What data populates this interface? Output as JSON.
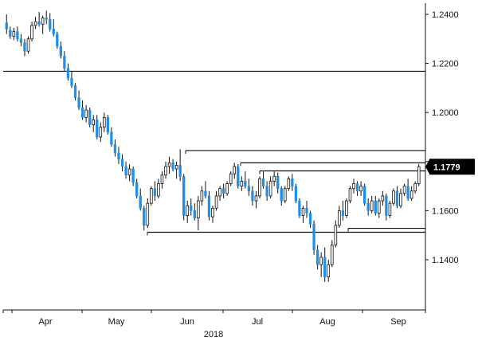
{
  "chart_data": {
    "type": "candlestick",
    "title": "",
    "xlabel": "",
    "ylabel": "",
    "ylim": [
      1.122,
      1.244
    ],
    "y_ticks": [
      "1.2400",
      "1.2200",
      "1.2000",
      "1.1800",
      "1.1600",
      "1.1400"
    ],
    "x_tick_labels": [
      "Apr",
      "May",
      "Jun",
      "Jul",
      "Aug",
      "Sep"
    ],
    "year_label": "2018",
    "last_price": {
      "value": 1.1779,
      "label": "1.1779"
    },
    "colors": {
      "up": "#ffffff",
      "down": "#1e90e8",
      "wick": "#111111",
      "levels": "#111111",
      "badge": "#000000"
    },
    "levels": [
      {
        "value": 1.2168,
        "from": "start",
        "to": "end"
      },
      {
        "value": 1.1845,
        "from": "Jun",
        "to": "end"
      },
      {
        "value": 1.1795,
        "from": "Jul-first",
        "to": "end"
      },
      {
        "value": 1.1762,
        "from": "Jul-second",
        "to": "end"
      },
      {
        "value": 1.1528,
        "from": "Aug-late",
        "to": "end"
      },
      {
        "value": 1.1512,
        "from": "May-late",
        "to": "end"
      }
    ],
    "candles": [
      [
        1.2365,
        1.24,
        1.232,
        1.234
      ],
      [
        1.2335,
        1.235,
        1.23,
        1.231
      ],
      [
        1.231,
        1.2345,
        1.2295,
        1.233
      ],
      [
        1.233,
        1.235,
        1.229,
        1.23
      ],
      [
        1.23,
        1.232,
        1.227,
        1.2285
      ],
      [
        1.2285,
        1.23,
        1.223,
        1.225
      ],
      [
        1.225,
        1.231,
        1.224,
        1.23
      ],
      [
        1.23,
        1.237,
        1.229,
        1.2355
      ],
      [
        1.2355,
        1.239,
        1.234,
        1.237
      ],
      [
        1.237,
        1.241,
        1.235,
        1.236
      ],
      [
        1.236,
        1.2395,
        1.232,
        1.2385
      ],
      [
        1.2385,
        1.2415,
        1.236,
        1.238
      ],
      [
        1.238,
        1.2405,
        1.233,
        1.234
      ],
      [
        1.234,
        1.238,
        1.231,
        1.232
      ],
      [
        1.232,
        1.233,
        1.226,
        1.227
      ],
      [
        1.227,
        1.229,
        1.222,
        1.223
      ],
      [
        1.223,
        1.225,
        1.217,
        1.218
      ],
      [
        1.218,
        1.22,
        1.213,
        1.214
      ],
      [
        1.214,
        1.217,
        1.21,
        1.211
      ],
      [
        1.211,
        1.212,
        1.205,
        1.206
      ],
      [
        1.206,
        1.209,
        1.201,
        1.202
      ],
      [
        1.202,
        1.205,
        1.197,
        1.198
      ],
      [
        1.198,
        1.203,
        1.196,
        1.201
      ],
      [
        1.201,
        1.202,
        1.194,
        1.195
      ],
      [
        1.195,
        1.199,
        1.192,
        1.197
      ],
      [
        1.197,
        1.199,
        1.189,
        1.19
      ],
      [
        1.19,
        1.196,
        1.188,
        1.194
      ],
      [
        1.194,
        1.2,
        1.192,
        1.198
      ],
      [
        1.198,
        1.199,
        1.191,
        1.192
      ],
      [
        1.192,
        1.194,
        1.186,
        1.187
      ],
      [
        1.187,
        1.189,
        1.182,
        1.1835
      ],
      [
        1.1835,
        1.186,
        1.179,
        1.181
      ],
      [
        1.181,
        1.183,
        1.176,
        1.178
      ],
      [
        1.178,
        1.18,
        1.173,
        1.1745
      ],
      [
        1.1745,
        1.179,
        1.172,
        1.177
      ],
      [
        1.177,
        1.178,
        1.17,
        1.1715
      ],
      [
        1.1715,
        1.173,
        1.165,
        1.166
      ],
      [
        1.166,
        1.169,
        1.16,
        1.161
      ],
      [
        1.161,
        1.162,
        1.152,
        1.154
      ],
      [
        1.154,
        1.165,
        1.153,
        1.163
      ],
      [
        1.163,
        1.17,
        1.162,
        1.169
      ],
      [
        1.169,
        1.172,
        1.164,
        1.166
      ],
      [
        1.166,
        1.173,
        1.165,
        1.171
      ],
      [
        1.171,
        1.176,
        1.169,
        1.1745
      ],
      [
        1.1745,
        1.18,
        1.173,
        1.178
      ],
      [
        1.178,
        1.182,
        1.175,
        1.1795
      ],
      [
        1.1795,
        1.181,
        1.176,
        1.177
      ],
      [
        1.177,
        1.18,
        1.173,
        1.1785
      ],
      [
        1.1785,
        1.185,
        1.172,
        1.174
      ],
      [
        1.174,
        1.175,
        1.156,
        1.158
      ],
      [
        1.158,
        1.164,
        1.155,
        1.162
      ],
      [
        1.162,
        1.165,
        1.158,
        1.16
      ],
      [
        1.16,
        1.163,
        1.156,
        1.157
      ],
      [
        1.157,
        1.166,
        1.152,
        1.164
      ],
      [
        1.164,
        1.17,
        1.162,
        1.168
      ],
      [
        1.168,
        1.172,
        1.165,
        1.166
      ],
      [
        1.166,
        1.168,
        1.156,
        1.1575
      ],
      [
        1.1575,
        1.162,
        1.155,
        1.161
      ],
      [
        1.161,
        1.168,
        1.16,
        1.166
      ],
      [
        1.166,
        1.17,
        1.164,
        1.169
      ],
      [
        1.169,
        1.171,
        1.165,
        1.167
      ],
      [
        1.167,
        1.172,
        1.166,
        1.171
      ],
      [
        1.171,
        1.176,
        1.17,
        1.175
      ],
      [
        1.175,
        1.1795,
        1.173,
        1.178
      ],
      [
        1.178,
        1.179,
        1.169,
        1.17
      ],
      [
        1.17,
        1.174,
        1.168,
        1.172
      ],
      [
        1.172,
        1.176,
        1.169,
        1.17
      ],
      [
        1.17,
        1.173,
        1.166,
        1.168
      ],
      [
        1.168,
        1.17,
        1.162,
        1.164
      ],
      [
        1.164,
        1.168,
        1.161,
        1.166
      ],
      [
        1.166,
        1.174,
        1.165,
        1.173
      ],
      [
        1.173,
        1.176,
        1.169,
        1.17
      ],
      [
        1.17,
        1.172,
        1.164,
        1.166
      ],
      [
        1.166,
        1.174,
        1.165,
        1.172
      ],
      [
        1.172,
        1.176,
        1.17,
        1.174
      ],
      [
        1.174,
        1.1755,
        1.167,
        1.169
      ],
      [
        1.169,
        1.17,
        1.162,
        1.164
      ],
      [
        1.164,
        1.17,
        1.163,
        1.169
      ],
      [
        1.169,
        1.174,
        1.168,
        1.173
      ],
      [
        1.173,
        1.175,
        1.168,
        1.17
      ],
      [
        1.17,
        1.171,
        1.163,
        1.164
      ],
      [
        1.164,
        1.165,
        1.157,
        1.158
      ],
      [
        1.158,
        1.162,
        1.155,
        1.161
      ],
      [
        1.161,
        1.164,
        1.157,
        1.159
      ],
      [
        1.159,
        1.16,
        1.153,
        1.1545
      ],
      [
        1.1545,
        1.156,
        1.142,
        1.144
      ],
      [
        1.144,
        1.146,
        1.136,
        1.138
      ],
      [
        1.138,
        1.143,
        1.133,
        1.141
      ],
      [
        1.141,
        1.145,
        1.131,
        1.133
      ],
      [
        1.133,
        1.14,
        1.131,
        1.138
      ],
      [
        1.138,
        1.148,
        1.137,
        1.146
      ],
      [
        1.146,
        1.156,
        1.145,
        1.154
      ],
      [
        1.154,
        1.162,
        1.153,
        1.16
      ],
      [
        1.16,
        1.164,
        1.156,
        1.158
      ],
      [
        1.158,
        1.165,
        1.157,
        1.164
      ],
      [
        1.164,
        1.17,
        1.163,
        1.169
      ],
      [
        1.169,
        1.173,
        1.167,
        1.171
      ],
      [
        1.171,
        1.172,
        1.166,
        1.168
      ],
      [
        1.168,
        1.172,
        1.166,
        1.17
      ],
      [
        1.17,
        1.171,
        1.162,
        1.163
      ],
      [
        1.163,
        1.165,
        1.158,
        1.16
      ],
      [
        1.16,
        1.166,
        1.159,
        1.164
      ],
      [
        1.164,
        1.166,
        1.158,
        1.159
      ],
      [
        1.159,
        1.165,
        1.157,
        1.164
      ],
      [
        1.164,
        1.168,
        1.162,
        1.166
      ],
      [
        1.166,
        1.167,
        1.156,
        1.158
      ],
      [
        1.158,
        1.164,
        1.157,
        1.163
      ],
      [
        1.163,
        1.169,
        1.162,
        1.168
      ],
      [
        1.168,
        1.17,
        1.161,
        1.162
      ],
      [
        1.162,
        1.169,
        1.161,
        1.167
      ],
      [
        1.167,
        1.171,
        1.166,
        1.17
      ],
      [
        1.17,
        1.173,
        1.164,
        1.165
      ],
      [
        1.165,
        1.17,
        1.164,
        1.168
      ],
      [
        1.168,
        1.172,
        1.167,
        1.171
      ],
      [
        1.171,
        1.179,
        1.17,
        1.1779
      ]
    ]
  }
}
